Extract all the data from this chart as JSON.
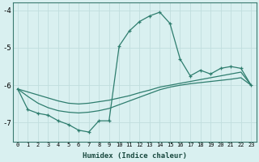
{
  "x": [
    0,
    1,
    2,
    3,
    4,
    5,
    6,
    7,
    8,
    9,
    10,
    11,
    12,
    13,
    14,
    15,
    16,
    17,
    18,
    19,
    20,
    21,
    22,
    23
  ],
  "main_line": [
    -6.1,
    -6.65,
    -6.75,
    -6.8,
    -6.95,
    -7.05,
    -7.2,
    -7.25,
    -6.95,
    -6.95,
    -4.95,
    -4.55,
    -4.3,
    -4.15,
    -4.05,
    -4.35,
    -5.3,
    -5.75,
    -5.6,
    -5.7,
    -5.55,
    -5.5,
    -5.55,
    -6.0
  ],
  "upper_envelope": [
    -6.1,
    -6.18,
    -6.26,
    -6.34,
    -6.42,
    -6.48,
    -6.5,
    -6.48,
    -6.44,
    -6.4,
    -6.34,
    -6.28,
    -6.2,
    -6.13,
    -6.05,
    -6.0,
    -5.95,
    -5.9,
    -5.85,
    -5.8,
    -5.75,
    -5.7,
    -5.65,
    -6.0
  ],
  "lower_envelope": [
    -6.1,
    -6.3,
    -6.48,
    -6.6,
    -6.68,
    -6.72,
    -6.74,
    -6.72,
    -6.68,
    -6.62,
    -6.52,
    -6.42,
    -6.32,
    -6.22,
    -6.12,
    -6.05,
    -6.0,
    -5.96,
    -5.93,
    -5.9,
    -5.87,
    -5.84,
    -5.8,
    -6.0
  ],
  "line_color": "#2e7d6e",
  "bg_color": "#d9f0f0",
  "grid_color": "#c0dede",
  "ylim": [
    -7.5,
    -3.8
  ],
  "xlim": [
    -0.5,
    23.5
  ],
  "yticks": [
    -7,
    -6,
    -5,
    -4
  ],
  "xticks": [
    0,
    1,
    2,
    3,
    4,
    5,
    6,
    7,
    8,
    9,
    10,
    11,
    12,
    13,
    14,
    15,
    16,
    17,
    18,
    19,
    20,
    21,
    22,
    23
  ],
  "xlabel": "Humidex (Indice chaleur)",
  "figsize": [
    3.2,
    2.0
  ],
  "dpi": 100
}
